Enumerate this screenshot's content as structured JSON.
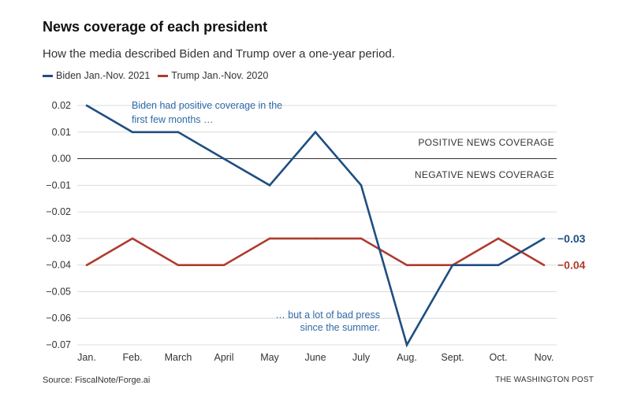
{
  "header": {
    "title": "News coverage of each president",
    "subtitle": "How the media described Biden and Trump over a one-year period."
  },
  "footer": {
    "source": "Source: FiscalNote/Forge.ai",
    "credit": "THE WASHINGTON POST"
  },
  "colors": {
    "biden": "#1f4e82",
    "trump": "#b03a2e",
    "annotation": "#2f6aa8"
  },
  "chart_data": {
    "type": "line",
    "title": "News coverage of each president",
    "subtitle": "How the media described Biden and Trump over a one-year period.",
    "categories": [
      "Jan.",
      "Feb.",
      "March",
      "April",
      "May",
      "June",
      "July",
      "Aug.",
      "Sept.",
      "Oct.",
      "Nov."
    ],
    "ylim": [
      -0.07,
      0.02
    ],
    "yticks": [
      0.02,
      0.01,
      0.0,
      -0.01,
      -0.02,
      -0.03,
      -0.04,
      -0.05,
      -0.06,
      -0.07
    ],
    "ytick_labels": [
      "0.02",
      "0.01",
      "0.00",
      "−0.01",
      "−0.02",
      "−0.03",
      "−0.04",
      "−0.05",
      "−0.06",
      "−0.07"
    ],
    "grid": true,
    "legend_position": "top-left",
    "series": [
      {
        "name": "Biden Jan.-Nov. 2021",
        "values": [
          0.02,
          0.01,
          0.01,
          0.0,
          -0.01,
          0.01,
          -0.01,
          -0.07,
          -0.04,
          -0.04,
          -0.03
        ],
        "end_label": "−0.03"
      },
      {
        "name": "Trump Jan.-Nov. 2020",
        "values": [
          -0.04,
          -0.03,
          -0.04,
          -0.04,
          -0.03,
          -0.03,
          -0.03,
          -0.04,
          -0.04,
          -0.03,
          -0.04
        ],
        "end_label": "−0.04"
      }
    ],
    "annotations": {
      "positive_label": "POSITIVE NEWS COVERAGE",
      "negative_label": "NEGATIVE NEWS COVERAGE",
      "top_note_line1": "Biden had positive coverage in the",
      "top_note_line2": "first few months …",
      "bottom_note_line1": "… but a lot of bad press",
      "bottom_note_line2": "since the summer."
    }
  }
}
